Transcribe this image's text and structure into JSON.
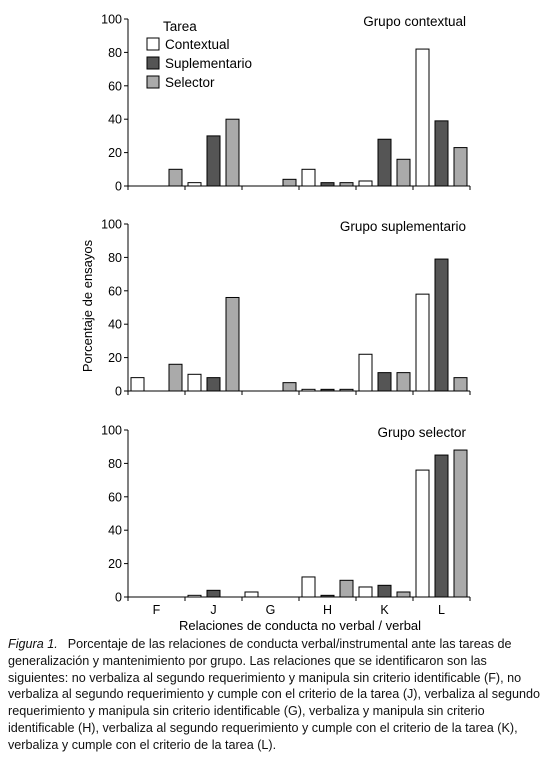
{
  "ylabel": "Porcentaje de ensayos",
  "xlabel": "Relaciones de conducta no verbal / verbal",
  "legend": {
    "title": "Tarea",
    "items": [
      {
        "name": "Contextual",
        "color": "#ffffff"
      },
      {
        "name": "Suplementario",
        "color": "#555555"
      },
      {
        "name": "Selector",
        "color": "#aaaaaa"
      }
    ]
  },
  "chart_data": [
    {
      "type": "bar",
      "title": "Grupo contextual",
      "categories": [
        "F",
        "J",
        "G",
        "H",
        "K",
        "L"
      ],
      "ylim": [
        0,
        100
      ],
      "yticks": [
        0,
        20,
        40,
        60,
        80,
        100
      ],
      "show_xticklabels": false,
      "series": [
        {
          "name": "Contextual",
          "color": "#ffffff",
          "values": [
            0,
            2,
            0,
            10,
            3,
            82
          ]
        },
        {
          "name": "Suplementario",
          "color": "#555555",
          "values": [
            0,
            30,
            0,
            2,
            28,
            39
          ]
        },
        {
          "name": "Selector",
          "color": "#aaaaaa",
          "values": [
            10,
            40,
            4,
            2,
            16,
            23
          ]
        }
      ]
    },
    {
      "type": "bar",
      "title": "Grupo suplementario",
      "categories": [
        "F",
        "J",
        "G",
        "H",
        "K",
        "L"
      ],
      "ylim": [
        0,
        100
      ],
      "yticks": [
        0,
        20,
        40,
        60,
        80,
        100
      ],
      "show_xticklabels": false,
      "series": [
        {
          "name": "Contextual",
          "color": "#ffffff",
          "values": [
            8,
            10,
            0,
            1,
            22,
            58
          ]
        },
        {
          "name": "Suplementario",
          "color": "#555555",
          "values": [
            0,
            8,
            0,
            1,
            11,
            79
          ]
        },
        {
          "name": "Selector",
          "color": "#aaaaaa",
          "values": [
            16,
            56,
            5,
            1,
            11,
            8
          ]
        }
      ]
    },
    {
      "type": "bar",
      "title": "Grupo selector",
      "categories": [
        "F",
        "J",
        "G",
        "H",
        "K",
        "L"
      ],
      "ylim": [
        0,
        100
      ],
      "yticks": [
        0,
        20,
        40,
        60,
        80,
        100
      ],
      "show_xticklabels": true,
      "series": [
        {
          "name": "Contextual",
          "color": "#ffffff",
          "values": [
            0,
            1,
            3,
            12,
            6,
            76
          ]
        },
        {
          "name": "Suplementario",
          "color": "#555555",
          "values": [
            0,
            4,
            0,
            1,
            7,
            85
          ]
        },
        {
          "name": "Selector",
          "color": "#aaaaaa",
          "values": [
            0,
            0,
            0,
            10,
            3,
            88
          ]
        }
      ]
    }
  ],
  "caption": {
    "label": "Figura 1.",
    "text": "Porcentaje de las relaciones de conducta verbal/instrumental ante las tareas de generalización y mantenimiento por grupo. Las relaciones que se identificaron son las siguientes: no verbaliza al segundo requerimiento y manipula sin criterio identificable (F), no verbaliza al segundo requerimiento y cumple con el criterio de la tarea (J), verbaliza al segundo requerimiento y manipula sin criterio identificable (G), verbaliza y manipula sin criterio identificable (H), verbaliza al segundo requerimiento y cumple con el criterio de la tarea (K), verbaliza y cumple con el criterio de la tarea (L)."
  }
}
